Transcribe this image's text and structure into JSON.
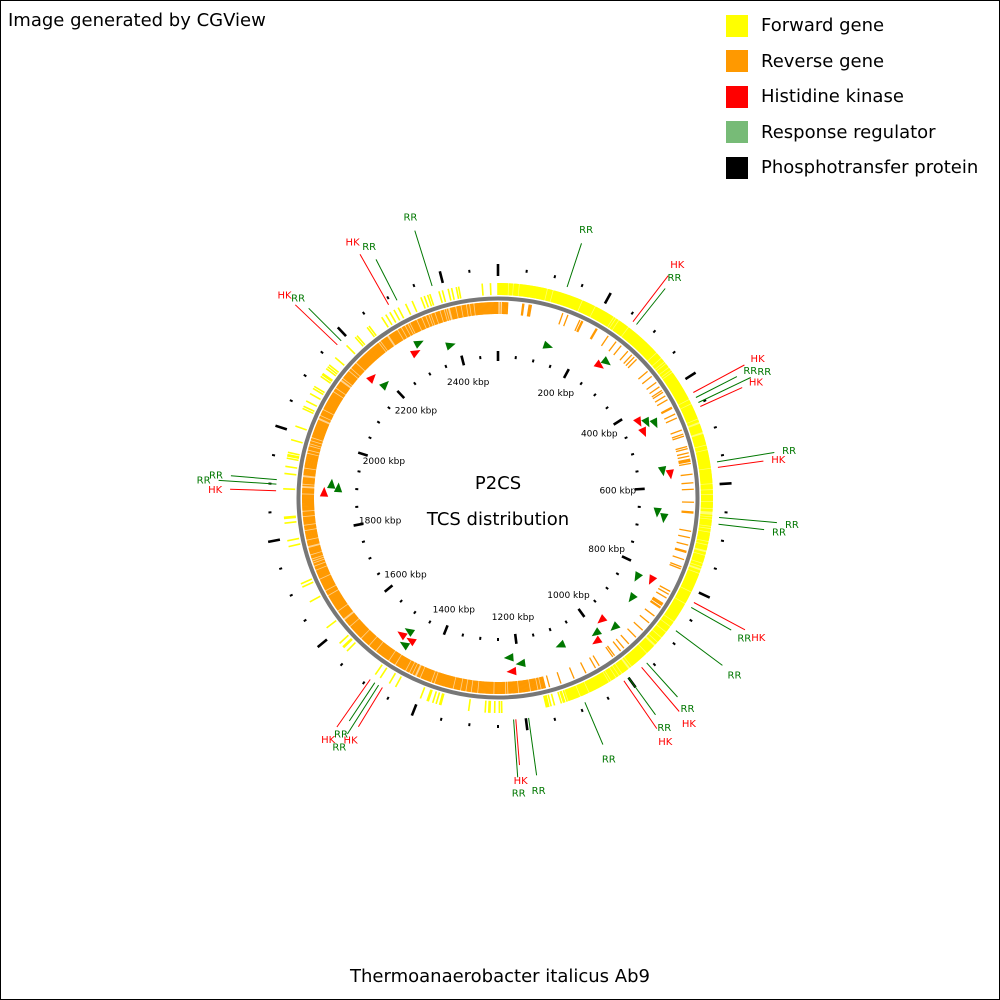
{
  "credit": "Image generated by CGView",
  "title_line1": "P2CS",
  "title_line2": "TCS distribution",
  "organism": "Thermoanaerobacter italicus Ab9",
  "legend": [
    {
      "label": "Forward gene",
      "color": "#ffff00"
    },
    {
      "label": "Reverse gene",
      "color": "#ff9900"
    },
    {
      "label": "Histidine kinase",
      "color": "#ff0000"
    },
    {
      "label": "Response regulator",
      "color": "#77bb77"
    },
    {
      "label": "Phosphotransfer protein",
      "color": "#000000"
    }
  ],
  "genome_kbp": 2500,
  "tick_labels": [
    "200 kbp",
    "400 kbp",
    "600 kbp",
    "800 kbp",
    "1000 kbp",
    "1200 kbp",
    "1400 kbp",
    "1600 kbp",
    "1800 kbp",
    "2000 kbp",
    "2200 kbp",
    "2400 kbp"
  ],
  "colors": {
    "forward": "#ffff00",
    "reverse": "#ff9900",
    "hk": "#ff0000",
    "rr": "#007700",
    "backbone": "#777777",
    "ticks": "#000000"
  },
  "features": [
    {
      "type": "RR",
      "kbp": 126
    },
    {
      "type": "HK",
      "kbp": 260
    },
    {
      "type": "RR",
      "kbp": 268
    },
    {
      "type": "HK",
      "kbp": 428
    },
    {
      "type": "RR",
      "kbp": 438
    },
    {
      "type": "RR",
      "kbp": 448
    },
    {
      "type": "HK",
      "kbp": 456
    },
    {
      "type": "RR",
      "kbp": 560
    },
    {
      "type": "HK",
      "kbp": 570
    },
    {
      "type": "RR",
      "kbp": 660
    },
    {
      "type": "RR",
      "kbp": 672
    },
    {
      "type": "HK",
      "kbp": 820
    },
    {
      "type": "RR",
      "kbp": 830
    },
    {
      "type": "RR",
      "kbp": 880
    },
    {
      "type": "RR",
      "kbp": 958
    },
    {
      "type": "HK",
      "kbp": 970
    },
    {
      "type": "RR",
      "kbp": 1000
    },
    {
      "type": "HK",
      "kbp": 1010
    },
    {
      "type": "RR",
      "kbp": 1090
    },
    {
      "type": "RR",
      "kbp": 1195
    },
    {
      "type": "HK",
      "kbp": 1218
    },
    {
      "type": "RR",
      "kbp": 1222
    },
    {
      "type": "HK",
      "kbp": 1468
    },
    {
      "type": "RR",
      "kbp": 1476
    },
    {
      "type": "RR",
      "kbp": 1484
    },
    {
      "type": "HK",
      "kbp": 1494
    },
    {
      "type": "HK",
      "kbp": 1888
    },
    {
      "type": "RR",
      "kbp": 1900
    },
    {
      "type": "RR",
      "kbp": 1908
    },
    {
      "type": "HK",
      "kbp": 2178
    },
    {
      "type": "RR",
      "kbp": 2188
    },
    {
      "type": "HK",
      "kbp": 2295
    },
    {
      "type": "RR",
      "kbp": 2312
    },
    {
      "type": "RR",
      "kbp": 2380
    }
  ]
}
